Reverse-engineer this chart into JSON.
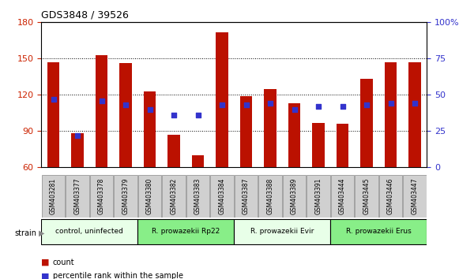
{
  "title": "GDS3848 / 39526",
  "samples": [
    "GSM403281",
    "GSM403377",
    "GSM403378",
    "GSM403379",
    "GSM403380",
    "GSM403382",
    "GSM403383",
    "GSM403384",
    "GSM403387",
    "GSM403388",
    "GSM403389",
    "GSM403391",
    "GSM403444",
    "GSM403445",
    "GSM403446",
    "GSM403447"
  ],
  "counts": [
    147,
    88,
    153,
    146,
    123,
    87,
    70,
    172,
    119,
    125,
    113,
    97,
    96,
    133,
    147,
    147
  ],
  "percentiles": [
    47,
    22,
    46,
    43,
    40,
    36,
    36,
    43,
    43,
    44,
    40,
    42,
    42,
    43,
    44,
    44
  ],
  "ylim_left": [
    60,
    180
  ],
  "ylim_right": [
    0,
    100
  ],
  "yticks_left": [
    60,
    90,
    120,
    150,
    180
  ],
  "yticks_right": [
    0,
    25,
    50,
    75,
    100
  ],
  "bar_color": "#bb1100",
  "dot_color": "#3333cc",
  "strain_groups": [
    {
      "label": "control, uninfected",
      "start": 0,
      "end": 4,
      "color": "#e8ffe8"
    },
    {
      "label": "R. prowazekii Rp22",
      "start": 4,
      "end": 8,
      "color": "#88ee88"
    },
    {
      "label": "R. prowazekii Evir",
      "start": 8,
      "end": 12,
      "color": "#e8ffe8"
    },
    {
      "label": "R. prowazekii Erus",
      "start": 12,
      "end": 16,
      "color": "#88ee88"
    }
  ],
  "legend_count_label": "count",
  "legend_pct_label": "percentile rank within the sample",
  "left_axis_color": "#cc2200",
  "right_axis_color": "#3333cc",
  "xticklabel_bg": "#d0d0d0"
}
